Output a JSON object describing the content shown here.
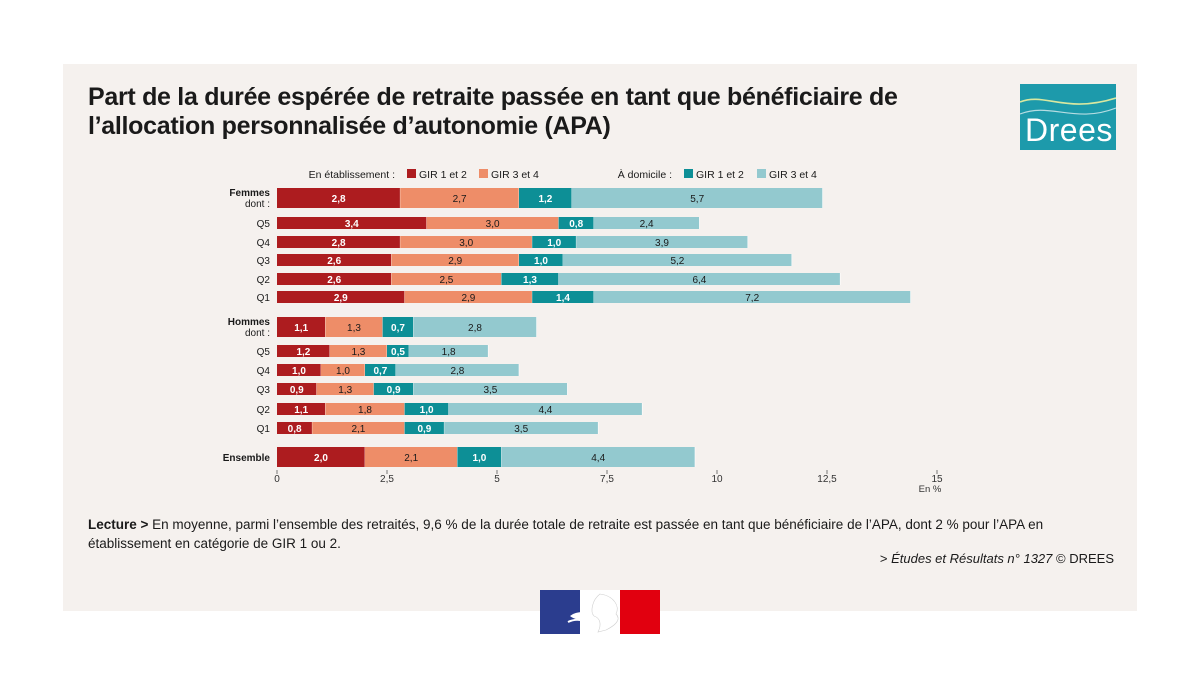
{
  "title": "Part de la durée espérée de retraite passée en tant que bénéficiaire de l’allocation personnalisée d’autonomie (APA)",
  "logo": {
    "text": "Drees",
    "color": "#1d9aab"
  },
  "lecture": {
    "prefix": "Lecture >",
    "text": " En moyenne, parmi l’ensemble des retraités, 9,6 % de la durée totale de retraite est passée en tant que bénéficiaire de l’APA, dont 2 % pour l’APA en établissement en catégorie de GIR 1 ou 2."
  },
  "source": {
    "prefix": "> ",
    "ref": "Études et Résultats n° 1327",
    "suffix": " © DREES"
  },
  "marianne_icon": "marianne-republique-francaise-logo",
  "chart_data": {
    "type": "bar",
    "orientation": "horizontal",
    "stacked": true,
    "unit_label": "En %",
    "xlim": [
      0,
      15
    ],
    "xticks": [
      0,
      2.5,
      5,
      7.5,
      10,
      12.5,
      15
    ],
    "xtick_labels": [
      "0",
      "2,5",
      "5",
      "7,5",
      "10",
      "12,5",
      "15"
    ],
    "legend": {
      "placement": "top",
      "groups": [
        {
          "label": "En établissement :",
          "series": [
            0,
            1
          ]
        },
        {
          "label": "À domicile :",
          "series": [
            2,
            3
          ]
        }
      ]
    },
    "categories": [
      {
        "label": "Femmes",
        "sublabel": "dont :",
        "bold": true
      },
      {
        "label": "Q5"
      },
      {
        "label": "Q4"
      },
      {
        "label": "Q3"
      },
      {
        "label": "Q2"
      },
      {
        "label": "Q1"
      },
      {
        "label": "Hommes",
        "sublabel": "dont :",
        "bold": true
      },
      {
        "label": "Q5"
      },
      {
        "label": "Q4"
      },
      {
        "label": "Q3"
      },
      {
        "label": "Q2"
      },
      {
        "label": "Q1"
      },
      {
        "label": "Ensemble",
        "bold": true
      }
    ],
    "series": [
      {
        "name": "GIR 1 et 2",
        "color": "#ad1c1f",
        "label_color": "#ffffff",
        "values": [
          2.8,
          3.4,
          2.8,
          2.6,
          2.6,
          2.9,
          1.1,
          1.2,
          1.0,
          0.9,
          1.1,
          0.8,
          2.0
        ],
        "labels": [
          "2,8",
          "3,4",
          "2,8",
          "2,6",
          "2,6",
          "2,9",
          "1,1",
          "1,2",
          "1,0",
          "0,9",
          "1,1",
          "0,8",
          "2,0"
        ]
      },
      {
        "name": "GIR 3 et 4",
        "color": "#ee8d68",
        "label_color": "#1a1a1a",
        "values": [
          2.7,
          3.0,
          3.0,
          2.9,
          2.5,
          2.9,
          1.3,
          1.3,
          1.0,
          1.3,
          1.8,
          2.1,
          2.1
        ],
        "labels": [
          "2,7",
          "3,0",
          "3,0",
          "2,9",
          "2,5",
          "2,9",
          "1,3",
          "1,3",
          "1,0",
          "1,3",
          "1,8",
          "2,1",
          "2,1"
        ]
      },
      {
        "name": "GIR 1 et 2",
        "color": "#0d8f96",
        "label_color": "#ffffff",
        "values": [
          1.2,
          0.8,
          1.0,
          1.0,
          1.3,
          1.4,
          0.7,
          0.5,
          0.7,
          0.9,
          1.0,
          0.9,
          1.0
        ],
        "labels": [
          "1,2",
          "0,8",
          "1,0",
          "1,0",
          "1,3",
          "1,4",
          "0,7",
          "0,5",
          "0,7",
          "0,9",
          "1,0",
          "0,9",
          "1,0"
        ]
      },
      {
        "name": "GIR 3 et 4",
        "color": "#93c9cf",
        "label_color": "#1a1a1a",
        "values": [
          5.7,
          2.4,
          3.9,
          5.2,
          6.4,
          7.2,
          2.8,
          1.8,
          2.8,
          3.5,
          4.4,
          3.5,
          4.4
        ],
        "labels": [
          "5,7",
          "2,4",
          "3,9",
          "5,2",
          "6,4",
          "7,2",
          "2,8",
          "1,8",
          "2,8",
          "3,5",
          "4,4",
          "3,5",
          "4,4"
        ]
      }
    ]
  }
}
